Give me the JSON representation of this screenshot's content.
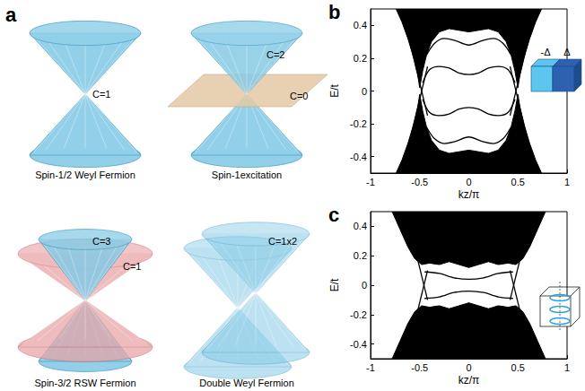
{
  "diagram": {
    "panel_label": "a",
    "cells": [
      {
        "labels": [
          "C=1"
        ],
        "caption": "Spin-1/2 Weyl Fermion"
      },
      {
        "labels": [
          "C=2",
          "C=0"
        ],
        "caption": "Spin-1excitation"
      },
      {
        "labels": [
          "C=3",
          "C=1"
        ],
        "caption": "Spin-3/2 RSW Fermion"
      },
      {
        "labels": [
          "C=1x2"
        ],
        "caption": "Double Weyl Fermion"
      }
    ]
  },
  "chart_data": [
    {
      "type": "line",
      "panel_label": "b",
      "x_label": "kz/π",
      "y_label": "E/t",
      "annotations": [
        "-Δ",
        "Δ"
      ],
      "xlim": [
        -1,
        1
      ],
      "xticks": [
        -1,
        -0.5,
        0,
        0.5,
        1
      ],
      "ylim": [
        -0.5,
        0.5
      ],
      "yticks": [
        -0.4,
        -0.2,
        0,
        0.2,
        0.4
      ],
      "grid": false,
      "series": [
        {
          "type": "upper_band",
          "color": "#000000",
          "x": [
            -0.74,
            -0.68,
            -0.62,
            -0.56,
            -0.52,
            -0.5,
            -0.47,
            -0.43,
            -0.38,
            -0.3,
            -0.2,
            -0.1,
            0,
            0.1,
            0.2,
            0.3,
            0.38,
            0.43,
            0.47,
            0.5,
            0.52,
            0.56,
            0.62,
            0.68,
            0.74
          ],
          "values": [
            0.5,
            0.42,
            0.32,
            0.2,
            0.1,
            0.02,
            0.12,
            0.22,
            0.3,
            0.36,
            0.38,
            0.37,
            0.36,
            0.37,
            0.38,
            0.36,
            0.3,
            0.22,
            0.12,
            0.02,
            0.1,
            0.2,
            0.32,
            0.42,
            0.5
          ]
        },
        {
          "type": "lower_band",
          "color": "#000000",
          "x": [
            -0.74,
            -0.68,
            -0.62,
            -0.56,
            -0.52,
            -0.5,
            -0.47,
            -0.43,
            -0.38,
            -0.3,
            -0.2,
            -0.1,
            0,
            0.1,
            0.2,
            0.3,
            0.38,
            0.43,
            0.47,
            0.5,
            0.52,
            0.56,
            0.62,
            0.68,
            0.74
          ],
          "values": [
            -0.5,
            -0.42,
            -0.32,
            -0.2,
            -0.1,
            -0.02,
            -0.12,
            -0.22,
            -0.3,
            -0.36,
            -0.38,
            -0.37,
            -0.36,
            -0.37,
            -0.38,
            -0.36,
            -0.3,
            -0.22,
            -0.12,
            -0.02,
            -0.1,
            -0.2,
            -0.32,
            -0.42,
            -0.5
          ]
        },
        {
          "type": "line",
          "color": "#000000",
          "x": [
            -0.47,
            -0.4,
            -0.3,
            -0.2,
            -0.1,
            0,
            0.1,
            0.2,
            0.3,
            0.4,
            0.47
          ],
          "values": [
            0.05,
            0.13,
            0.15,
            0.14,
            0.11,
            0.1,
            0.11,
            0.14,
            0.15,
            0.13,
            0.05
          ]
        },
        {
          "type": "line",
          "color": "#000000",
          "x": [
            -0.47,
            -0.4,
            -0.3,
            -0.2,
            -0.1,
            0,
            0.1,
            0.2,
            0.3,
            0.4,
            0.47
          ],
          "values": [
            -0.05,
            -0.13,
            -0.15,
            -0.14,
            -0.11,
            -0.1,
            -0.11,
            -0.14,
            -0.15,
            -0.13,
            -0.05
          ]
        },
        {
          "type": "line",
          "color": "#000000",
          "x": [
            -0.43,
            -0.35,
            -0.25,
            -0.15,
            0,
            0.15,
            0.25,
            0.35,
            0.43
          ],
          "values": [
            0.22,
            0.29,
            0.32,
            0.31,
            0.28,
            0.31,
            0.32,
            0.29,
            0.22
          ]
        },
        {
          "type": "line",
          "color": "#000000",
          "x": [
            -0.43,
            -0.35,
            -0.25,
            -0.15,
            0,
            0.15,
            0.25,
            0.35,
            0.43
          ],
          "values": [
            -0.22,
            -0.29,
            -0.32,
            -0.31,
            -0.28,
            -0.31,
            -0.32,
            -0.29,
            -0.22
          ]
        },
        {
          "type": "line",
          "color": "#000000",
          "x": [
            -0.68,
            -0.42
          ],
          "values": [
            0.5,
            -0.15
          ]
        },
        {
          "type": "line",
          "color": "#000000",
          "x": [
            -0.68,
            -0.42
          ],
          "values": [
            -0.5,
            0.15
          ]
        },
        {
          "type": "line",
          "color": "#000000",
          "x": [
            0.68,
            0.42
          ],
          "values": [
            0.5,
            -0.15
          ]
        },
        {
          "type": "line",
          "color": "#000000",
          "x": [
            0.68,
            0.42
          ],
          "values": [
            -0.5,
            0.15
          ]
        }
      ]
    },
    {
      "type": "line",
      "panel_label": "c",
      "x_label": "kz/π",
      "y_label": "E/t",
      "xlim": [
        -1,
        1
      ],
      "xticks": [
        -1,
        -0.5,
        0,
        0.5,
        1
      ],
      "ylim": [
        -0.5,
        0.5
      ],
      "yticks": [
        -0.4,
        -0.2,
        0,
        0.2,
        0.4
      ],
      "grid": false,
      "series": [
        {
          "type": "upper_band",
          "color": "#000000",
          "x": [
            -0.78,
            -0.7,
            -0.62,
            -0.55,
            -0.48,
            -0.4,
            -0.3,
            -0.2,
            -0.1,
            0,
            0.1,
            0.2,
            0.3,
            0.4,
            0.48,
            0.55,
            0.62,
            0.7,
            0.78
          ],
          "values": [
            0.5,
            0.38,
            0.26,
            0.18,
            0.14,
            0.15,
            0.14,
            0.16,
            0.14,
            0.12,
            0.14,
            0.16,
            0.14,
            0.15,
            0.14,
            0.18,
            0.26,
            0.38,
            0.5
          ]
        },
        {
          "type": "lower_band",
          "color": "#000000",
          "x": [
            -0.78,
            -0.7,
            -0.62,
            -0.55,
            -0.48,
            -0.4,
            -0.3,
            -0.2,
            -0.1,
            0,
            0.1,
            0.2,
            0.3,
            0.4,
            0.48,
            0.55,
            0.62,
            0.7,
            0.78
          ],
          "values": [
            -0.5,
            -0.38,
            -0.26,
            -0.18,
            -0.14,
            -0.15,
            -0.14,
            -0.16,
            -0.14,
            -0.12,
            -0.14,
            -0.16,
            -0.14,
            -0.15,
            -0.14,
            -0.18,
            -0.26,
            -0.38,
            -0.5
          ]
        },
        {
          "type": "line",
          "color": "#000000",
          "x": [
            -0.45,
            -0.3,
            -0.15,
            0,
            0.15,
            0.3,
            0.45
          ],
          "values": [
            0.09,
            0.08,
            0.05,
            0.04,
            0.05,
            0.08,
            0.09
          ]
        },
        {
          "type": "line",
          "color": "#000000",
          "x": [
            -0.45,
            -0.3,
            -0.15,
            0,
            0.15,
            0.3,
            0.45
          ],
          "values": [
            -0.09,
            -0.08,
            -0.05,
            -0.04,
            -0.05,
            -0.08,
            -0.09
          ]
        },
        {
          "type": "line",
          "color": "#000000",
          "x": [
            -0.64,
            -0.42
          ],
          "values": [
            0.5,
            -0.1
          ]
        },
        {
          "type": "line",
          "color": "#000000",
          "x": [
            -0.64,
            -0.42
          ],
          "values": [
            -0.5,
            0.1
          ]
        },
        {
          "type": "line",
          "color": "#000000",
          "x": [
            0.64,
            0.42
          ],
          "values": [
            0.5,
            -0.1
          ]
        },
        {
          "type": "line",
          "color": "#000000",
          "x": [
            0.64,
            0.42
          ],
          "values": [
            -0.5,
            0.1
          ]
        }
      ]
    }
  ]
}
